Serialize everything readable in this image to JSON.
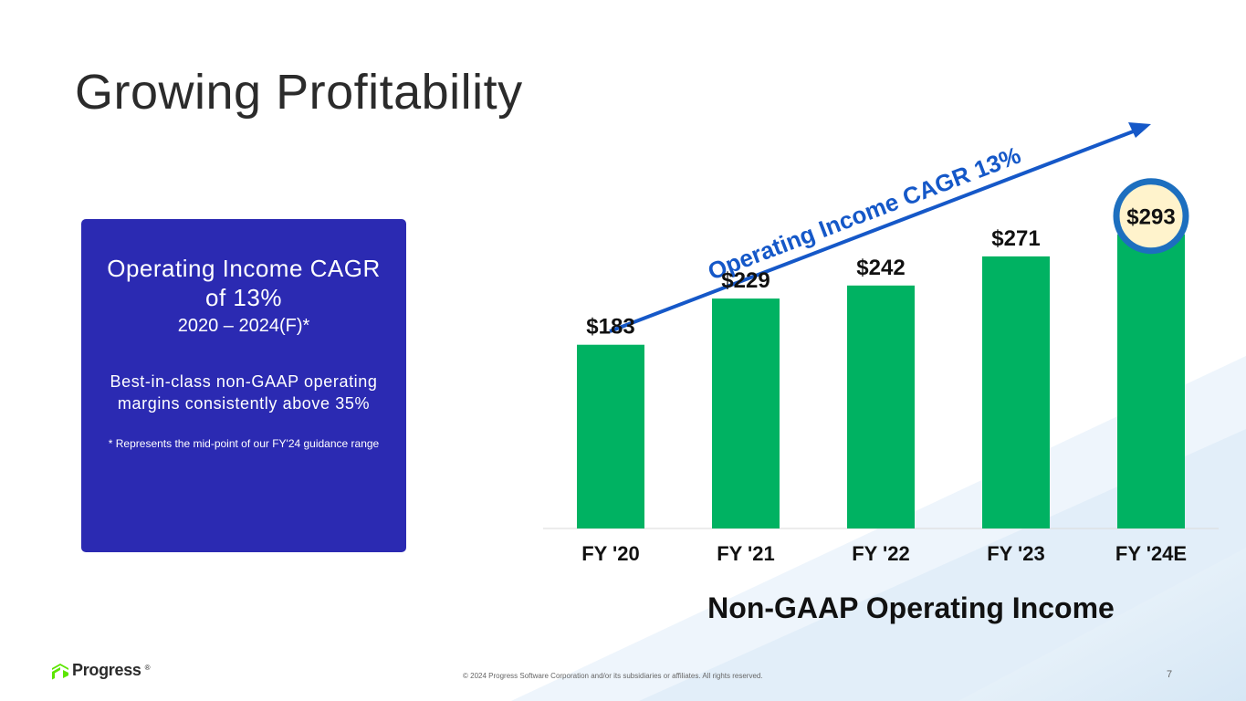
{
  "slide": {
    "title": "Growing Profitability",
    "page_number": "7",
    "copyright": "© 2024 Progress Software Corporation and/or its subsidiaries or affiliates. All rights reserved.",
    "logo_text": "Progress",
    "logo_mark": "®"
  },
  "callout": {
    "headline": "Operating Income CAGR of 13%",
    "range": "2020 – 2024(F)*",
    "description": "Best-in-class non-GAAP operating margins consistently above 35%",
    "footnote": "* Represents the mid-point of our FY'24 guidance range",
    "background": "#2b2ab2"
  },
  "colors": {
    "bar": "#00b262",
    "arrow": "#1558c8",
    "highlight_ring": "#1d6fbf",
    "highlight_fill": "#fff3cc"
  },
  "chart_data": {
    "type": "bar",
    "title": "Non-GAAP Operating Income",
    "categories": [
      "FY '20",
      "FY '21",
      "FY '22",
      "FY '23",
      "FY '24E"
    ],
    "values": [
      183,
      229,
      242,
      271,
      293
    ],
    "value_labels": [
      "$183",
      "$229",
      "$242",
      "$271",
      "$293"
    ],
    "highlighted_category": "FY '24E",
    "annotation": "Operating Income CAGR 13%",
    "grid": false,
    "legend": "none"
  }
}
